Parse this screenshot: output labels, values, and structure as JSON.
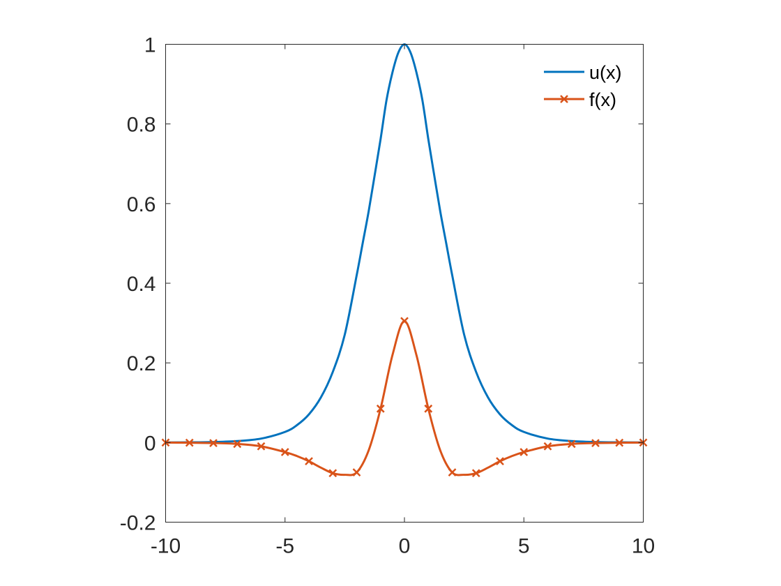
{
  "chart_data": {
    "type": "line",
    "title": "",
    "xlabel": "",
    "ylabel": "",
    "xlim": [
      -10,
      10
    ],
    "ylim": [
      -0.2,
      1
    ],
    "xticks": [
      -10,
      -5,
      0,
      5,
      10
    ],
    "yticks": [
      -0.2,
      0,
      0.2,
      0.4,
      0.6,
      0.8,
      1
    ],
    "xtick_labels": [
      "-10",
      "-5",
      "0",
      "5",
      "10"
    ],
    "ytick_labels": [
      "-0.2",
      "0",
      "0.2",
      "0.4",
      "0.6",
      "0.8",
      "1"
    ],
    "grid": false,
    "legend_position": "top-right",
    "series": [
      {
        "name": "u(x)",
        "color": "#0072BD",
        "marker": "none",
        "x": [
          -10,
          -9,
          -8,
          -7,
          -6,
          -5,
          -4.5,
          -4,
          -3.5,
          -3,
          -2.5,
          -2,
          -1.75,
          -1.5,
          -1.25,
          -1,
          -0.75,
          -0.5,
          -0.25,
          0,
          0.25,
          0.5,
          0.75,
          1,
          1.25,
          1.5,
          1.75,
          2,
          2.5,
          3,
          3.5,
          4,
          4.5,
          5,
          6,
          7,
          8,
          9,
          10
        ],
        "y": [
          0.0002,
          0.0005,
          0.0013,
          0.0036,
          0.0099,
          0.0266,
          0.0437,
          0.0707,
          0.1131,
          0.1773,
          0.2707,
          0.42,
          0.5,
          0.58,
          0.67,
          0.7616,
          0.86,
          0.93,
          0.98,
          1.0,
          0.98,
          0.93,
          0.86,
          0.7616,
          0.67,
          0.58,
          0.5,
          0.42,
          0.2707,
          0.1773,
          0.1131,
          0.0707,
          0.0437,
          0.0266,
          0.0099,
          0.0036,
          0.0013,
          0.0005,
          0.0002
        ]
      },
      {
        "name": "f(x)",
        "color": "#D95319",
        "marker": "x",
        "x": [
          -10,
          -9,
          -8,
          -7,
          -6,
          -5,
          -4.5,
          -4,
          -3.5,
          -3,
          -2.5,
          -2,
          -1.5,
          -1,
          -0.5,
          0,
          0.5,
          1,
          1.5,
          2,
          2.5,
          3,
          3.5,
          4,
          4.5,
          5,
          6,
          7,
          8,
          9,
          10
        ],
        "y": [
          0,
          -0.0005,
          -0.0013,
          -0.0035,
          -0.0095,
          -0.024,
          -0.034,
          -0.047,
          -0.063,
          -0.077,
          -0.081,
          -0.075,
          -0.02,
          0.085,
          0.22,
          0.305,
          0.22,
          0.085,
          -0.02,
          -0.075,
          -0.081,
          -0.077,
          -0.063,
          -0.047,
          -0.034,
          -0.024,
          -0.0095,
          -0.0035,
          -0.0013,
          -0.0005,
          0
        ],
        "marker_x": [
          -10,
          -9,
          -8,
          -7,
          -6,
          -5,
          -4,
          -3,
          -2,
          -1,
          0,
          1,
          2,
          3,
          4,
          5,
          6,
          7,
          8,
          9,
          10
        ],
        "marker_y": [
          0,
          -0.0005,
          -0.0013,
          -0.0035,
          -0.0095,
          -0.024,
          -0.047,
          -0.077,
          -0.075,
          0.085,
          0.305,
          0.085,
          -0.075,
          -0.077,
          -0.047,
          -0.024,
          -0.0095,
          -0.0035,
          -0.0013,
          -0.0005,
          0
        ]
      }
    ]
  }
}
